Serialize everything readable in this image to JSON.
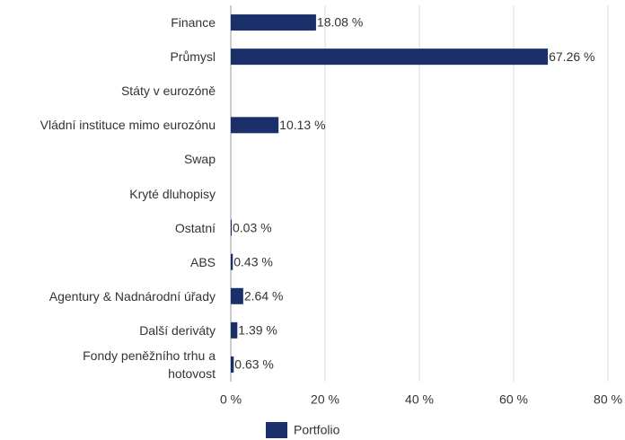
{
  "chart_data": {
    "type": "hbar",
    "categories": [
      "Finance",
      "Průmysl",
      "Státy v eurozóně",
      "Vládní instituce mimo eurozónu",
      "Swap",
      "Kryté dluhopisy",
      "Ostatní",
      "ABS",
      "Agentury & Nadnárodní úřady",
      "Další deriváty",
      "Fondy peněžního trhu a hotovost"
    ],
    "series": [
      {
        "name": "Portfolio",
        "color": "#1b2f6b",
        "values": [
          18.08,
          67.26,
          null,
          10.13,
          null,
          null,
          0.03,
          0.43,
          2.64,
          1.39,
          0.63
        ],
        "value_labels": [
          "18.08 %",
          "67.26 %",
          null,
          "10.13 %",
          null,
          null,
          "0.03 %",
          "0.43 %",
          "2.64 %",
          "1.39 %",
          "0.63 %"
        ]
      }
    ],
    "xlim": [
      0,
      80
    ],
    "xticks": [
      {
        "value": 0,
        "label": "0 %"
      },
      {
        "value": 20,
        "label": "20 %"
      },
      {
        "value": 40,
        "label": "40 %"
      },
      {
        "value": 60,
        "label": "60 %"
      },
      {
        "value": 80,
        "label": "80 %"
      }
    ],
    "grid": true,
    "legend": "bottom"
  }
}
